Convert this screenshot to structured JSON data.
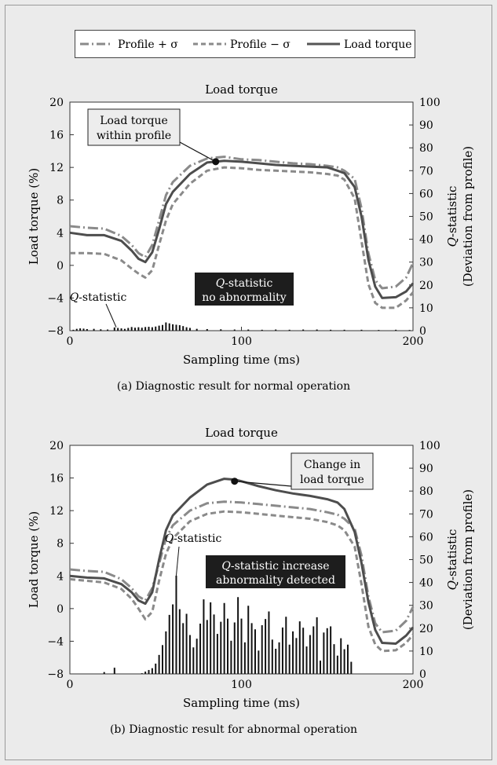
{
  "legend": {
    "profile_plus": "Profile + σ",
    "profile_minus": "Profile − σ",
    "load_torque": "Load torque"
  },
  "chart_data": [
    {
      "type": "line",
      "title": "Load torque",
      "caption": "(a) Diagnostic result for normal operation",
      "xlabel": "Sampling time (ms)",
      "ylabel_left": "Load torque (%)",
      "ylabel_right": "Q-statistic (Deviation from profile)",
      "xlim": [
        0,
        200
      ],
      "ylim_left": [
        -8,
        20
      ],
      "ylim_right": [
        0,
        100
      ],
      "xticks": [
        "0",
        "100",
        "200"
      ],
      "yticks_left": [
        "20",
        "16",
        "12",
        "8",
        "4",
        "0",
        "−4",
        "−8"
      ],
      "yticks_right": [
        "100",
        "90",
        "80",
        "70",
        "60",
        "50",
        "40",
        "30",
        "20",
        "10",
        "0"
      ],
      "series": [
        {
          "name": "Profile + σ",
          "x": [
            0,
            10,
            20,
            30,
            36,
            40,
            44,
            48,
            52,
            56,
            60,
            70,
            80,
            90,
            100,
            110,
            120,
            130,
            140,
            150,
            156,
            160,
            166,
            170,
            174,
            178,
            182,
            190,
            196,
            200
          ],
          "values": [
            4.8,
            4.6,
            4.5,
            3.6,
            2.5,
            1.5,
            1.0,
            2.5,
            5.5,
            8.6,
            10.2,
            12.2,
            13.1,
            13.3,
            13.0,
            12.9,
            12.7,
            12.5,
            12.4,
            12.2,
            12.0,
            11.6,
            10.6,
            7.0,
            1.5,
            -1.8,
            -2.8,
            -2.6,
            -1.5,
            0.3
          ]
        },
        {
          "name": "Profile − σ",
          "x": [
            0,
            10,
            20,
            30,
            36,
            40,
            44,
            48,
            52,
            56,
            60,
            70,
            80,
            90,
            100,
            110,
            120,
            130,
            140,
            150,
            156,
            160,
            166,
            170,
            174,
            178,
            182,
            190,
            196,
            200
          ],
          "values": [
            1.5,
            1.5,
            1.4,
            0.6,
            -0.4,
            -1.0,
            -1.5,
            -0.6,
            2.5,
            5.5,
            7.5,
            10.0,
            11.6,
            12.0,
            11.9,
            11.7,
            11.6,
            11.5,
            11.4,
            11.2,
            11.0,
            10.5,
            8.2,
            3.0,
            -2.3,
            -4.6,
            -5.2,
            -5.2,
            -4.3,
            -3.3
          ]
        },
        {
          "name": "Load torque",
          "x": [
            0,
            10,
            20,
            30,
            36,
            40,
            44,
            48,
            52,
            56,
            60,
            70,
            80,
            90,
            100,
            110,
            120,
            130,
            140,
            150,
            156,
            160,
            166,
            170,
            174,
            178,
            182,
            190,
            196,
            200
          ],
          "values": [
            4.0,
            3.7,
            3.7,
            3.0,
            1.8,
            0.8,
            0.4,
            1.6,
            4.4,
            7.5,
            9.0,
            11.2,
            12.6,
            12.8,
            12.7,
            12.5,
            12.3,
            12.2,
            12.1,
            12.0,
            11.6,
            11.3,
            9.6,
            6.0,
            0.7,
            -2.6,
            -4.0,
            -3.9,
            -3.2,
            -2.2
          ]
        }
      ],
      "q_statistic": {
        "x": [
          2,
          4,
          6,
          8,
          10,
          14,
          18,
          22,
          26,
          28,
          30,
          32,
          34,
          36,
          38,
          40,
          42,
          44,
          46,
          48,
          50,
          52,
          54,
          56,
          58,
          60,
          62,
          64,
          66,
          68,
          70,
          74,
          80,
          88,
          96,
          104,
          112,
          120,
          128,
          136,
          144,
          152,
          160,
          170,
          180,
          190,
          198
        ],
        "values": [
          0.4,
          0.8,
          1.0,
          0.9,
          0.7,
          0.8,
          0.6,
          0.5,
          1.4,
          1.2,
          1.0,
          0.8,
          1.2,
          1.6,
          1.3,
          1.5,
          1.3,
          1.6,
          1.7,
          1.5,
          1.8,
          2.2,
          2.5,
          3.6,
          3.2,
          2.8,
          2.6,
          2.4,
          2.0,
          1.5,
          1.2,
          0.8,
          0.7,
          0.6,
          0.5,
          0.5,
          0.4,
          0.5,
          0.4,
          0.5,
          0.5,
          0.4,
          0.4,
          0.4,
          0.3,
          0.4,
          0.3
        ]
      },
      "annotations": {
        "torque_note": [
          "Load torque",
          "within profile"
        ],
        "q_label": "Q-statistic",
        "status_box": [
          "Q-statistic",
          "no abnormality"
        ]
      }
    },
    {
      "type": "line",
      "title": "Load torque",
      "caption": "(b) Diagnostic result for abnormal operation",
      "xlabel": "Sampling time (ms)",
      "ylabel_left": "Load torque (%)",
      "ylabel_right": "Q-statistic (Deviation from profile)",
      "xlim": [
        0,
        200
      ],
      "ylim_left": [
        -8,
        20
      ],
      "ylim_right": [
        0,
        100
      ],
      "xticks": [
        "0",
        "100",
        "200"
      ],
      "yticks_left": [
        "20",
        "16",
        "12",
        "8",
        "4",
        "0",
        "−4",
        "−8"
      ],
      "yticks_right": [
        "100",
        "90",
        "80",
        "70",
        "60",
        "50",
        "40",
        "30",
        "20",
        "10",
        "0"
      ],
      "series": [
        {
          "name": "Profile + σ",
          "x": [
            0,
            10,
            20,
            30,
            36,
            40,
            44,
            48,
            52,
            56,
            60,
            70,
            80,
            90,
            100,
            110,
            120,
            130,
            140,
            150,
            156,
            160,
            166,
            170,
            174,
            178,
            182,
            190,
            196,
            200
          ],
          "values": [
            4.8,
            4.6,
            4.5,
            3.6,
            2.5,
            1.5,
            1.0,
            2.5,
            5.5,
            8.6,
            10.2,
            12.0,
            12.9,
            13.1,
            13.0,
            12.8,
            12.6,
            12.4,
            12.2,
            11.8,
            11.5,
            11.0,
            9.8,
            6.5,
            1.5,
            -1.8,
            -2.9,
            -2.7,
            -1.5,
            0.2
          ]
        },
        {
          "name": "Profile − σ",
          "x": [
            0,
            10,
            20,
            30,
            36,
            40,
            44,
            48,
            52,
            56,
            60,
            70,
            80,
            90,
            100,
            110,
            120,
            130,
            140,
            150,
            156,
            160,
            166,
            170,
            174,
            178,
            182,
            190,
            196,
            200
          ],
          "values": [
            3.6,
            3.4,
            3.2,
            2.4,
            1.2,
            0.0,
            -1.3,
            -0.4,
            3.4,
            6.7,
            8.6,
            10.7,
            11.6,
            11.9,
            11.8,
            11.6,
            11.4,
            11.2,
            11.0,
            10.6,
            10.2,
            9.6,
            7.6,
            3.0,
            -2.2,
            -4.4,
            -5.2,
            -5.1,
            -4.2,
            -3.2
          ]
        },
        {
          "name": "Load torque",
          "x": [
            0,
            10,
            20,
            30,
            36,
            40,
            44,
            48,
            52,
            56,
            60,
            70,
            80,
            90,
            96,
            100,
            110,
            120,
            130,
            140,
            150,
            156,
            160,
            166,
            170,
            174,
            178,
            182,
            190,
            196,
            200
          ],
          "values": [
            4.0,
            3.8,
            3.7,
            3.0,
            2.0,
            1.0,
            0.6,
            2.0,
            6.0,
            9.6,
            11.4,
            13.6,
            15.2,
            15.9,
            15.8,
            15.6,
            15.0,
            14.5,
            14.1,
            13.8,
            13.4,
            13.0,
            12.2,
            9.4,
            5.6,
            0.8,
            -2.6,
            -4.2,
            -4.3,
            -3.3,
            -2.3
          ]
        }
      ],
      "q_statistic": {
        "x": [
          20,
          26,
          42,
          44,
          46,
          48,
          50,
          52,
          54,
          56,
          58,
          60,
          62,
          64,
          66,
          68,
          70,
          72,
          74,
          76,
          78,
          80,
          82,
          84,
          86,
          88,
          90,
          92,
          94,
          96,
          98,
          100,
          102,
          104,
          106,
          108,
          110,
          112,
          114,
          116,
          118,
          120,
          122,
          124,
          126,
          128,
          130,
          132,
          134,
          136,
          138,
          140,
          142,
          144,
          146,
          148,
          150,
          152,
          154,
          156,
          158,
          160,
          162,
          164
        ],
        "values": [
          0.8,
          2.7,
          0.3,
          1.0,
          1.7,
          2.5,
          4.5,
          8.3,
          12.6,
          18.6,
          25.8,
          30.4,
          43.0,
          28.3,
          22.2,
          26.3,
          17.0,
          11.6,
          15.4,
          22.0,
          32.6,
          23.6,
          31.3,
          26.0,
          17.5,
          22.8,
          31.0,
          24.2,
          14.5,
          22.5,
          33.6,
          24.2,
          13.8,
          29.8,
          22.2,
          19.5,
          10.2,
          21.3,
          24.0,
          27.3,
          15.0,
          11.0,
          13.8,
          20.3,
          25.0,
          12.8,
          18.6,
          15.7,
          23.0,
          20.2,
          12.0,
          17.0,
          20.8,
          24.8,
          5.8,
          18.1,
          20.0,
          20.8,
          13.0,
          8.0,
          15.6,
          10.8,
          12.8,
          5.3
        ]
      },
      "annotations": {
        "torque_note": [
          "Change in",
          "load torque"
        ],
        "q_label": "Q-statistic",
        "status_box": [
          "Q-statistic increase",
          "abnormality detected"
        ]
      }
    }
  ]
}
